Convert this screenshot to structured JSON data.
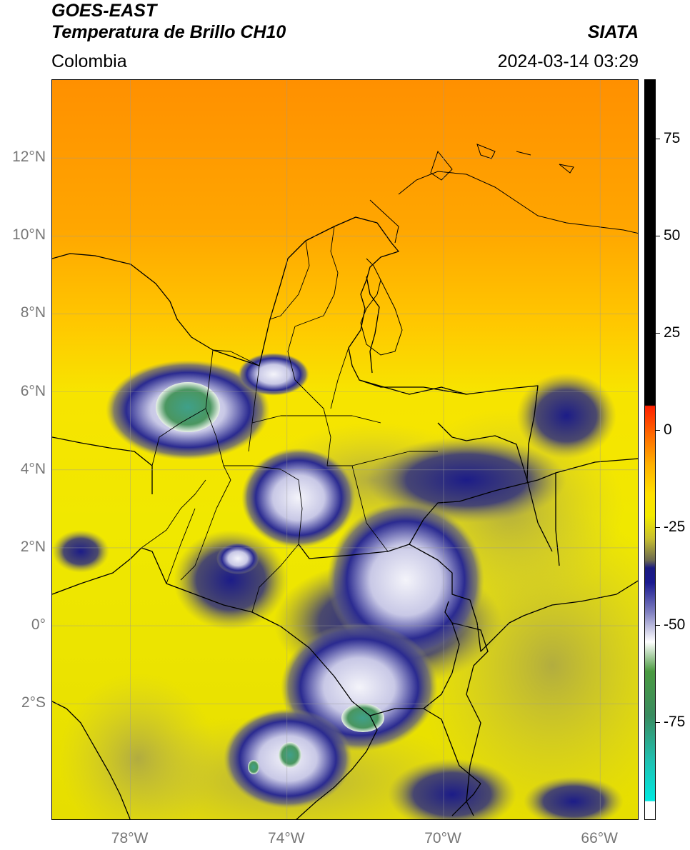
{
  "header": {
    "satellite": "GOES-EAST",
    "product": "Temperatura de Brillo CH10",
    "region": "Colombia",
    "source": "SIATA",
    "timestamp": "2024-03-14 03:29"
  },
  "map": {
    "lon_range": [
      -80,
      -65
    ],
    "lat_range": [
      -5,
      14
    ],
    "lat_ticks": [
      {
        "value": 12,
        "label": "12°N"
      },
      {
        "value": 10,
        "label": "10°N"
      },
      {
        "value": 8,
        "label": "8°N"
      },
      {
        "value": 6,
        "label": "6°N"
      },
      {
        "value": 4,
        "label": "4°N"
      },
      {
        "value": 2,
        "label": "2°N"
      },
      {
        "value": 0,
        "label": "0°"
      },
      {
        "value": -2,
        "label": "2°S"
      }
    ],
    "lon_ticks": [
      {
        "value": -78,
        "label": "78°W"
      },
      {
        "value": -74,
        "label": "74°W"
      },
      {
        "value": -70,
        "label": "70°W"
      },
      {
        "value": -66,
        "label": "66°W"
      }
    ],
    "colors": {
      "warm_orange": "#ff9500",
      "yellow": "#f2ea00",
      "olive": "#b8b34a",
      "navy": "#1a1a8a",
      "white_cloud": "#e8e8f4",
      "green": "#4a9a5a"
    }
  },
  "colorbar": {
    "range": [
      -100,
      90
    ],
    "ticks": [
      {
        "value": 75,
        "label": "75"
      },
      {
        "value": 50,
        "label": "50"
      },
      {
        "value": 25,
        "label": "25"
      },
      {
        "value": 0,
        "label": "0"
      },
      {
        "value": -25,
        "label": "-25"
      },
      {
        "value": -50,
        "label": "-50"
      },
      {
        "value": -75,
        "label": "-75"
      }
    ]
  }
}
